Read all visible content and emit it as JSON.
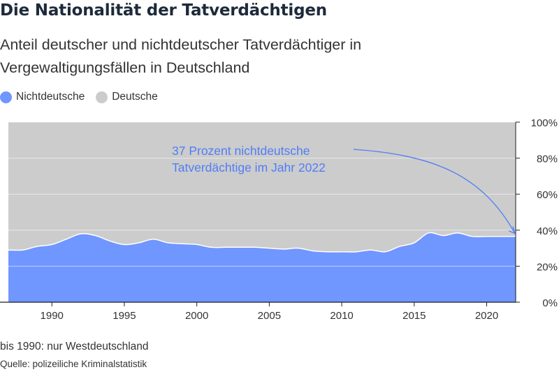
{
  "title": "Die Nationalität der Tatverdächtigen",
  "subtitle": "Anteil deutscher und nichtdeutscher Tatverdächtiger in Vergewaltigungsfällen in Deutschland",
  "legend": [
    {
      "label": "Nichtdeutsche",
      "color": "#7096ff"
    },
    {
      "label": "Deutsche",
      "color": "#cccccc"
    }
  ],
  "footnote": "bis 1990: nur Westdeutschland",
  "source": "Quelle: polizeiliche Kriminalstatistik",
  "colors": {
    "nichtdeutsche": "#7096ff",
    "deutsche": "#cccccc",
    "annotation": "#4f7df5",
    "axis": "#1f1f1f"
  },
  "chart_data": {
    "type": "area",
    "stacked": true,
    "x": [
      1987,
      1988,
      1989,
      1990,
      1991,
      1992,
      1993,
      1994,
      1995,
      1996,
      1997,
      1998,
      1999,
      2000,
      2001,
      2002,
      2003,
      2004,
      2005,
      2006,
      2007,
      2008,
      2009,
      2010,
      2011,
      2012,
      2013,
      2014,
      2015,
      2016,
      2017,
      2018,
      2019,
      2020,
      2021,
      2022
    ],
    "series": [
      {
        "name": "Nichtdeutsche",
        "values": [
          29,
          29,
          31,
          32,
          35,
          38,
          37,
          34,
          32,
          33,
          35,
          33,
          32.5,
          32,
          30.5,
          30.5,
          30.5,
          30.5,
          30,
          29.5,
          30,
          28.5,
          28,
          28,
          28,
          29,
          28,
          31,
          33,
          38.5,
          37,
          38.5,
          36.5,
          36.5,
          36.5,
          36.5
        ]
      },
      {
        "name": "Deutsche",
        "values": [
          71,
          71,
          69,
          68,
          65,
          62,
          63,
          66,
          68,
          67,
          65,
          67,
          67.5,
          68,
          69.5,
          69.5,
          69.5,
          69.5,
          70,
          70.5,
          70,
          71.5,
          72,
          72,
          72,
          71,
          72,
          69,
          67,
          61.5,
          63,
          61.5,
          63.5,
          63.5,
          63.5,
          63.5
        ]
      }
    ],
    "xlim": [
      1987,
      2022
    ],
    "ylim": [
      0,
      100
    ],
    "x_ticks": [
      1990,
      1995,
      2000,
      2005,
      2010,
      2015,
      2020
    ],
    "y_ticks": [
      "0%",
      "20%",
      "40%",
      "60%",
      "80%",
      "100%"
    ],
    "y_tick_values": [
      0,
      20,
      40,
      60,
      80,
      100
    ],
    "y_axis_side": "right",
    "grid": true,
    "legend_position": "top-left",
    "annotation": {
      "lines": [
        "37 Prozent nichtdeutsche",
        "Tatverdächtige im Jahr 2022"
      ],
      "x": 2022,
      "y": 37
    }
  }
}
